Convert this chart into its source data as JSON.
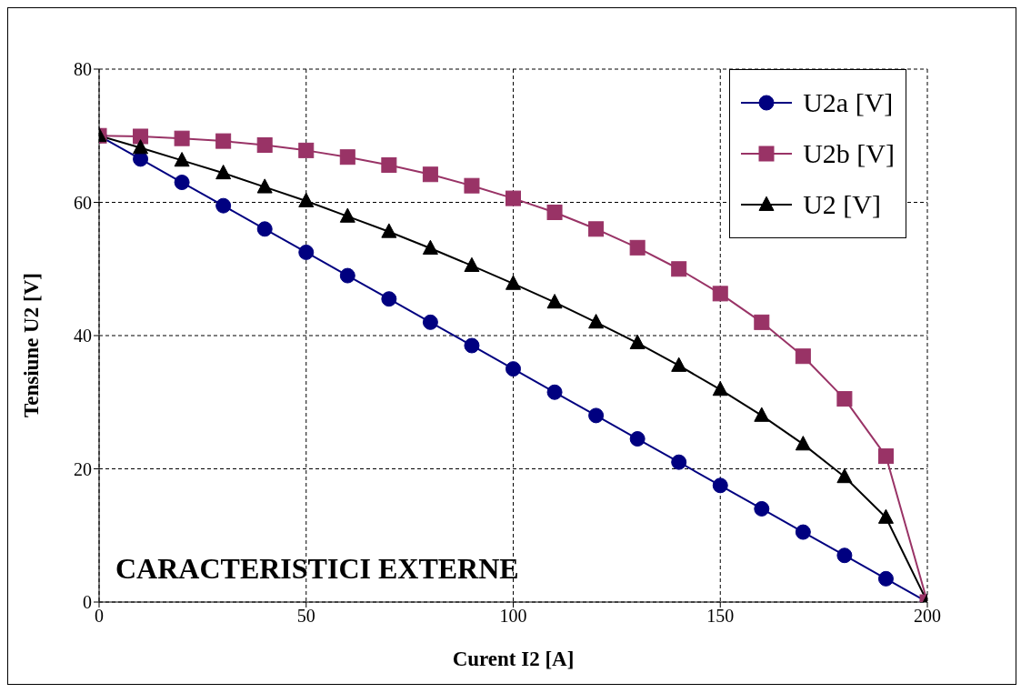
{
  "chart_data": {
    "type": "line",
    "xlabel": "Curent I2 [A]",
    "ylabel": "Tensiune U2 [V]",
    "annotations": [
      "CARACTERISTICI EXTERNE"
    ],
    "x": [
      0,
      10,
      20,
      30,
      40,
      50,
      60,
      70,
      80,
      90,
      100,
      110,
      120,
      130,
      140,
      150,
      160,
      170,
      180,
      190,
      200
    ],
    "series": [
      {
        "name": "U2a [V]",
        "color": "#000080",
        "marker": "circle",
        "values": [
          70,
          66.5,
          63,
          59.5,
          56,
          52.5,
          49,
          45.5,
          42,
          38.5,
          35,
          31.5,
          28,
          24.5,
          21,
          17.5,
          14,
          10.5,
          7,
          3.5,
          0
        ]
      },
      {
        "name": "U2b [V]",
        "color": "#993366",
        "marker": "square",
        "values": [
          70,
          69.9,
          69.6,
          69.2,
          68.6,
          67.8,
          66.8,
          65.6,
          64.2,
          62.5,
          60.6,
          58.5,
          56,
          53.2,
          50,
          46.3,
          42,
          36.9,
          30.5,
          21.9,
          0
        ]
      },
      {
        "name": "U2 [V]",
        "color": "#000000",
        "marker": "triangle",
        "values": [
          70,
          68.2,
          66.3,
          64.4,
          62.3,
          60.2,
          57.9,
          55.6,
          53.1,
          50.5,
          47.8,
          45,
          42,
          38.9,
          35.5,
          31.9,
          28,
          23.7,
          18.8,
          12.7,
          0
        ]
      }
    ],
    "xlim": [
      0,
      200
    ],
    "xticks": [
      0,
      50,
      100,
      150,
      200
    ],
    "ylim": [
      0,
      80
    ],
    "yticks": [
      0,
      20,
      40,
      60,
      80
    ],
    "grid": true,
    "legend": "top right",
    "line_style": "solid"
  }
}
